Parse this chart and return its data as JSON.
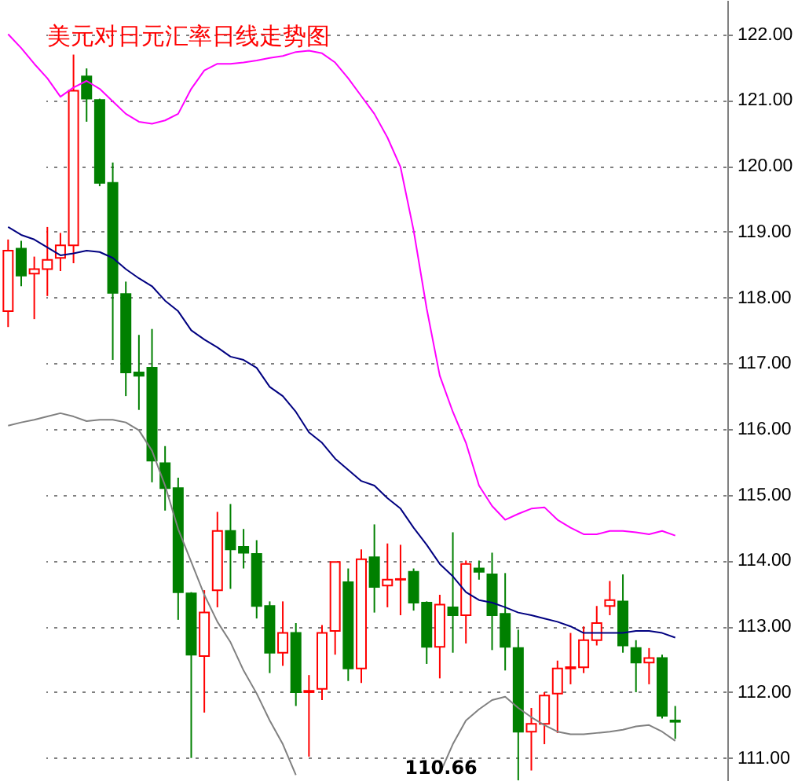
{
  "chart_data": {
    "type": "candlestick",
    "title": "美元对日元汇率日线走势图",
    "annotations": [
      {
        "text": "110.66",
        "y": 110.66
      }
    ],
    "categories": [
      null,
      null,
      null,
      null,
      null,
      null,
      null,
      null,
      null,
      null,
      null,
      null,
      null,
      null,
      null,
      null,
      null,
      null,
      null,
      null,
      null,
      null,
      null,
      null,
      null,
      null,
      null,
      null,
      null,
      null,
      null,
      null,
      null,
      null,
      null,
      null,
      null,
      null,
      null,
      null,
      null,
      null,
      null,
      null,
      null,
      null,
      null,
      null,
      null,
      null,
      null,
      null
    ],
    "ohlc": [
      [
        117.79,
        118.88,
        117.55,
        118.71
      ],
      [
        118.74,
        118.86,
        118.17,
        118.33
      ],
      [
        118.36,
        118.62,
        117.67,
        118.43
      ],
      [
        118.43,
        119.07,
        118.02,
        118.57
      ],
      [
        118.6,
        118.98,
        118.4,
        118.79
      ],
      [
        118.79,
        121.69,
        118.52,
        121.14
      ],
      [
        121.36,
        121.48,
        120.67,
        121.02
      ],
      [
        121.0,
        121.02,
        119.69,
        119.74
      ],
      [
        119.74,
        120.05,
        117.05,
        118.07
      ],
      [
        118.05,
        118.24,
        116.5,
        116.86
      ],
      [
        116.86,
        117.43,
        116.29,
        116.81
      ],
      [
        116.93,
        117.52,
        115.19,
        115.52
      ],
      [
        115.48,
        115.74,
        114.76,
        115.1
      ],
      [
        115.1,
        115.26,
        113.1,
        113.52
      ],
      [
        113.5,
        113.52,
        111.0,
        112.57
      ],
      [
        112.55,
        113.55,
        111.69,
        113.21
      ],
      [
        113.55,
        114.74,
        113.29,
        114.45
      ],
      [
        114.45,
        114.86,
        113.57,
        114.17
      ],
      [
        114.21,
        114.48,
        113.88,
        114.12
      ],
      [
        114.1,
        114.31,
        113.12,
        113.31
      ],
      [
        113.31,
        113.38,
        112.29,
        112.6
      ],
      [
        112.6,
        113.38,
        112.4,
        112.9
      ],
      [
        112.9,
        113.05,
        111.79,
        112.0
      ],
      [
        112.0,
        112.26,
        111.02,
        112.02
      ],
      [
        112.05,
        113.02,
        111.88,
        112.9
      ],
      [
        112.93,
        113.98,
        112.57,
        113.98
      ],
      [
        113.67,
        113.88,
        112.17,
        112.36
      ],
      [
        112.36,
        114.17,
        112.14,
        114.02
      ],
      [
        114.05,
        114.55,
        113.21,
        113.6
      ],
      [
        113.62,
        114.26,
        113.29,
        113.71
      ],
      [
        113.71,
        114.24,
        113.17,
        113.72
      ],
      [
        113.83,
        113.88,
        113.24,
        113.36
      ],
      [
        113.36,
        113.38,
        112.43,
        112.69
      ],
      [
        112.69,
        113.48,
        112.21,
        113.33
      ],
      [
        113.29,
        114.43,
        112.6,
        113.17
      ],
      [
        113.17,
        114.0,
        112.74,
        113.95
      ],
      [
        113.88,
        114.0,
        113.71,
        113.83
      ],
      [
        113.79,
        114.12,
        112.64,
        113.17
      ],
      [
        113.19,
        113.81,
        112.33,
        112.69
      ],
      [
        112.67,
        112.95,
        110.66,
        111.4
      ],
      [
        111.4,
        111.76,
        110.81,
        111.52
      ],
      [
        111.52,
        112.0,
        111.21,
        111.95
      ],
      [
        111.98,
        112.48,
        111.38,
        112.36
      ],
      [
        112.36,
        112.9,
        112.12,
        112.38
      ],
      [
        112.38,
        113.0,
        112.29,
        112.79
      ],
      [
        112.79,
        113.31,
        112.71,
        113.05
      ],
      [
        113.31,
        113.69,
        113.17,
        113.4
      ],
      [
        113.38,
        113.79,
        112.6,
        112.71
      ],
      [
        112.67,
        112.79,
        112.0,
        112.45
      ],
      [
        112.45,
        112.67,
        112.12,
        112.52
      ],
      [
        112.52,
        112.57,
        111.6,
        111.64
      ],
      [
        111.57,
        111.79,
        111.29,
        111.55
      ]
    ],
    "colors": [
      "#ff0000",
      "#008000",
      "#ff0000",
      "#ff0000",
      "#ff0000",
      "#ff0000",
      "#008000",
      "#008000",
      "#008000",
      "#008000",
      "#008000",
      "#008000",
      "#008000",
      "#008000",
      "#008000",
      "#ff0000",
      "#ff0000",
      "#008000",
      "#008000",
      "#008000",
      "#008000",
      "#ff0000",
      "#008000",
      "#ff0000",
      "#ff0000",
      "#ff0000",
      "#008000",
      "#ff0000",
      "#008000",
      "#ff0000",
      "#ff0000",
      "#008000",
      "#008000",
      "#ff0000",
      "#008000",
      "#ff0000",
      "#008000",
      "#008000",
      "#008000",
      "#008000",
      "#ff0000",
      "#ff0000",
      "#ff0000",
      "#ff0000",
      "#ff0000",
      "#ff0000",
      "#ff0000",
      "#008000",
      "#008000",
      "#ff0000",
      "#008000",
      "#008000"
    ],
    "series": [
      {
        "type": "line",
        "color": "#ff00ff",
        "values": [
          122.0,
          121.79,
          121.55,
          121.33,
          121.05,
          121.19,
          121.29,
          121.17,
          120.98,
          120.79,
          120.67,
          120.64,
          120.69,
          120.79,
          121.17,
          121.45,
          121.55,
          121.55,
          121.57,
          121.6,
          121.64,
          121.67,
          121.73,
          121.75,
          121.71,
          121.57,
          121.33,
          121.06,
          120.79,
          120.43,
          119.98,
          119.02,
          117.83,
          116.81,
          116.26,
          115.79,
          115.14,
          114.83,
          114.62,
          114.71,
          114.79,
          114.81,
          114.62,
          114.5,
          114.4,
          114.4,
          114.45,
          114.45,
          114.43,
          114.4,
          114.45,
          114.38
        ]
      },
      {
        "type": "line",
        "color": "#000080",
        "values": [
          119.07,
          118.95,
          118.88,
          118.76,
          118.64,
          118.67,
          118.71,
          118.69,
          118.6,
          118.43,
          118.29,
          118.17,
          117.95,
          117.79,
          117.5,
          117.36,
          117.24,
          117.1,
          117.05,
          116.93,
          116.64,
          116.5,
          116.26,
          115.95,
          115.79,
          115.55,
          115.38,
          115.21,
          115.14,
          114.95,
          114.79,
          114.5,
          114.24,
          113.95,
          113.76,
          113.52,
          113.4,
          113.36,
          113.29,
          113.21,
          113.17,
          113.12,
          113.07,
          113.0,
          112.9,
          112.9,
          112.9,
          112.9,
          112.93,
          112.93,
          112.9,
          112.83
        ]
      },
      {
        "type": "line",
        "color": "#808080",
        "values": [
          116.05,
          116.1,
          116.14,
          116.19,
          116.24,
          116.19,
          116.12,
          116.14,
          116.14,
          116.1,
          115.98,
          115.67,
          115.14,
          114.48,
          113.98,
          113.48,
          113.07,
          112.76,
          112.33,
          111.98,
          111.57,
          111.21,
          110.74,
          null,
          null,
          null,
          null,
          null,
          null,
          null,
          null,
          null,
          null,
          110.76,
          111.21,
          111.57,
          111.74,
          111.88,
          111.93,
          111.76,
          111.62,
          111.5,
          111.4,
          111.36,
          111.36,
          111.38,
          111.4,
          111.43,
          111.48,
          111.5,
          111.4,
          111.26
        ]
      }
    ],
    "ylim": [
      110.65,
      122.52
    ],
    "yticks": [
      {
        "value": 111,
        "label": "111.00"
      },
      {
        "value": 112,
        "label": "112.00"
      },
      {
        "value": 113,
        "label": "113.00"
      },
      {
        "value": 114,
        "label": "114.00"
      },
      {
        "value": 115,
        "label": "115.00"
      },
      {
        "value": 116,
        "label": "116.00"
      },
      {
        "value": 117,
        "label": "117.00"
      },
      {
        "value": 118,
        "label": "118.00"
      },
      {
        "value": 119,
        "label": "119.00"
      },
      {
        "value": 120,
        "label": "120.00"
      },
      {
        "value": 121,
        "label": "121.00"
      },
      {
        "value": 122,
        "label": "122.00"
      }
    ],
    "grid": "y",
    "tick_labels": "y"
  }
}
